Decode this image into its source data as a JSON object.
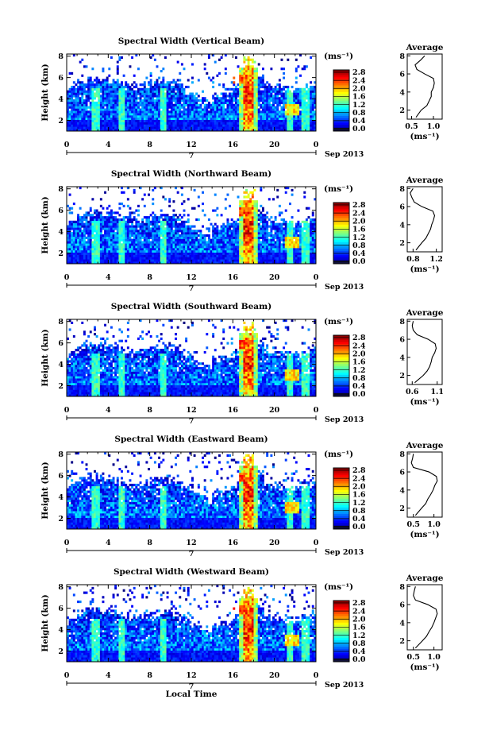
{
  "chart_data": {
    "type": "heatmap",
    "colorbar": {
      "label": "(ms⁻¹)",
      "ticks": [
        "0.0",
        "0.4",
        "0.8",
        "1.2",
        "1.6",
        "2.0",
        "2.4",
        "2.8"
      ],
      "range": [
        0.0,
        2.8
      ]
    },
    "panels": [
      {
        "title": "Spectral Width (Vertical Beam)",
        "ylabel": "Height (km)",
        "yticks": [
          "2",
          "4",
          "6",
          "8"
        ],
        "ylim": [
          1,
          8.2
        ],
        "xticks": [
          "0",
          "4",
          "8",
          "12",
          "16",
          "20",
          "0"
        ],
        "xlim": [
          0,
          24
        ],
        "date_tick": "7",
        "date_label": "Sep 2013",
        "average": {
          "title": "Average",
          "xticks": [
            "0.5",
            "1.0"
          ],
          "xlim": [
            0.4,
            1.2
          ],
          "xlabel": "(ms⁻¹)",
          "yticks": [
            "2",
            "4",
            "6",
            "8"
          ],
          "heights": [
            1.2,
            2.0,
            2.5,
            3.0,
            3.5,
            4.0,
            4.5,
            5.0,
            5.5,
            6.0,
            6.5,
            7.0,
            7.5,
            8.0
          ],
          "values": [
            0.6,
            0.72,
            0.85,
            0.9,
            0.95,
            0.95,
            1.0,
            1.02,
            1.0,
            0.8,
            0.62,
            0.58,
            0.7,
            0.8
          ]
        }
      },
      {
        "title": "Spectral Width (Northward Beam)",
        "ylabel": "Height (km)",
        "yticks": [
          "2",
          "4",
          "6",
          "8"
        ],
        "ylim": [
          1,
          8.2
        ],
        "xticks": [
          "0",
          "4",
          "8",
          "12",
          "16",
          "20",
          "0"
        ],
        "xlim": [
          0,
          24
        ],
        "date_tick": "7",
        "date_label": "Sep 2013",
        "average": {
          "title": "Average",
          "xticks": [
            "0.8",
            "1.2"
          ],
          "xlim": [
            0.7,
            1.3
          ],
          "xlabel": "(ms⁻¹)",
          "yticks": [
            "2",
            "4",
            "6",
            "8"
          ],
          "heights": [
            1.2,
            2.0,
            2.5,
            3.0,
            3.5,
            4.0,
            4.5,
            5.0,
            5.5,
            6.0,
            6.5,
            7.0,
            7.5,
            8.0
          ],
          "values": [
            0.85,
            0.95,
            1.02,
            1.06,
            1.1,
            1.12,
            1.15,
            1.17,
            1.14,
            0.95,
            0.82,
            0.78,
            0.75,
            0.8
          ]
        }
      },
      {
        "title": "Spectral Width (Southward Beam)",
        "ylabel": "Height (km)",
        "yticks": [
          "2",
          "4",
          "6",
          "8"
        ],
        "ylim": [
          1,
          8.2
        ],
        "xticks": [
          "0",
          "4",
          "8",
          "12",
          "16",
          "20",
          "0"
        ],
        "xlim": [
          0,
          24
        ],
        "date_tick": "7",
        "date_label": "Sep 2013",
        "average": {
          "title": "Average",
          "xticks": [
            "0.6",
            "1.1"
          ],
          "xlim": [
            0.5,
            1.2
          ],
          "xlabel": "(ms⁻¹)",
          "yticks": [
            "2",
            "4",
            "6",
            "8"
          ],
          "heights": [
            1.2,
            2.0,
            2.5,
            3.0,
            3.5,
            4.0,
            4.5,
            5.0,
            5.5,
            6.0,
            6.5,
            7.0,
            7.5,
            8.0
          ],
          "values": [
            0.65,
            0.82,
            0.9,
            0.95,
            0.98,
            1.0,
            1.05,
            1.08,
            1.06,
            0.92,
            0.7,
            0.62,
            0.6,
            0.62
          ]
        }
      },
      {
        "title": "Spectral Width (Eastward Beam)",
        "ylabel": "Height (km)",
        "yticks": [
          "2",
          "4",
          "6",
          "8"
        ],
        "ylim": [
          1,
          8.2
        ],
        "xticks": [
          "0",
          "4",
          "8",
          "12",
          "16",
          "20",
          "0"
        ],
        "xlim": [
          0,
          24
        ],
        "date_tick": "7",
        "date_label": "Sep 2013",
        "average": {
          "title": "Average",
          "xticks": [
            "0.5",
            "1.0"
          ],
          "xlim": [
            0.35,
            1.2
          ],
          "xlabel": "(ms⁻¹)",
          "yticks": [
            "2",
            "4",
            "6",
            "8"
          ],
          "heights": [
            1.2,
            2.0,
            2.5,
            3.0,
            3.5,
            4.0,
            4.5,
            5.0,
            5.5,
            6.0,
            6.5,
            7.0,
            7.5,
            8.0
          ],
          "values": [
            0.55,
            0.7,
            0.8,
            0.85,
            0.92,
            0.98,
            1.02,
            1.08,
            1.06,
            0.88,
            0.5,
            0.45,
            0.48,
            0.5
          ]
        }
      },
      {
        "title": "Spectral Width (Westward Beam)",
        "ylabel": "Height (km)",
        "yticks": [
          "2",
          "4",
          "6",
          "8"
        ],
        "ylim": [
          1,
          8.2
        ],
        "xticks": [
          "0",
          "4",
          "8",
          "12",
          "16",
          "20",
          "0"
        ],
        "xlim": [
          0,
          24
        ],
        "date_tick": "7",
        "date_label": "Sep 2013",
        "xlabel": "Local Time",
        "average": {
          "title": "Average",
          "xticks": [
            "0.5",
            "1.0"
          ],
          "xlim": [
            0.35,
            1.2
          ],
          "xlabel": "(ms⁻¹)",
          "yticks": [
            "2",
            "4",
            "6",
            "8"
          ],
          "heights": [
            1.2,
            2.0,
            2.5,
            3.0,
            3.5,
            4.0,
            4.5,
            5.0,
            5.5,
            6.0,
            6.5,
            7.0,
            7.5,
            8.0
          ],
          "values": [
            0.55,
            0.72,
            0.82,
            0.88,
            0.95,
            1.0,
            1.04,
            1.08,
            1.05,
            0.85,
            0.55,
            0.5,
            0.52,
            0.55
          ]
        }
      }
    ]
  }
}
